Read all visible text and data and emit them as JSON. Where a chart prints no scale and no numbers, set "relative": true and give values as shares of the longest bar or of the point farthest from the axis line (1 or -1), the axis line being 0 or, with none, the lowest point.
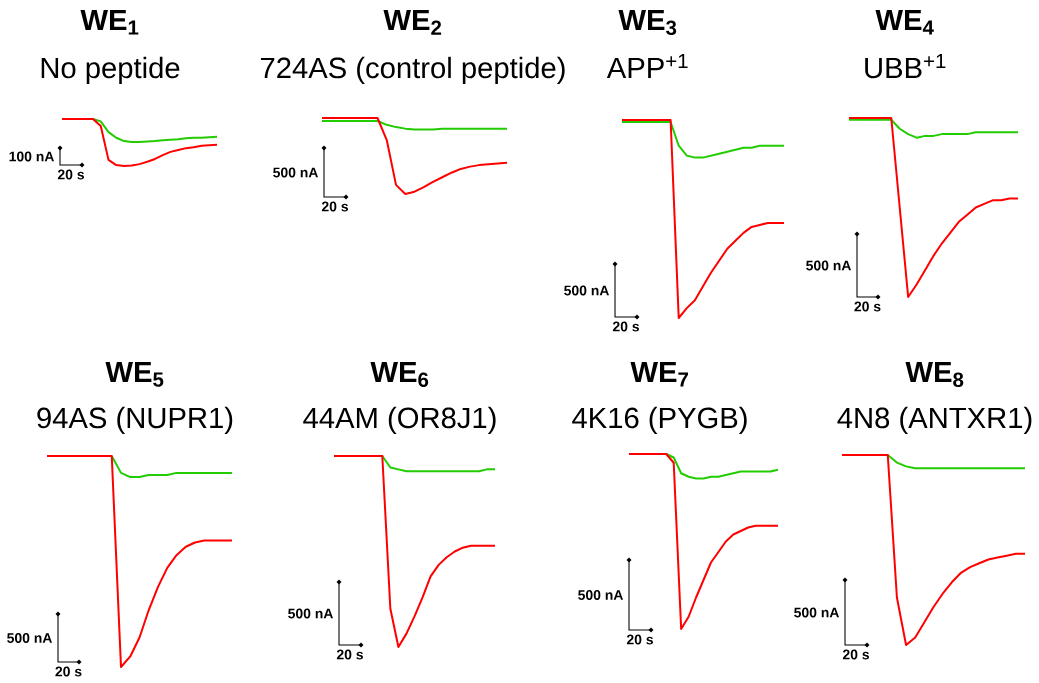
{
  "chart_data": [
    {
      "type": "line",
      "relative": true,
      "title": "WE$_{1}$",
      "subtitle": "No peptide",
      "annotations": [
        "100 nA",
        "20 s"
      ],
      "marker": "none",
      "line_style": "solid",
      "legend": false,
      "categories": [
        null,
        null,
        null,
        null,
        null,
        null,
        null,
        null,
        null,
        null,
        null,
        null,
        null,
        null,
        null,
        null,
        null,
        null,
        null,
        null,
        null
      ],
      "series": [
        {
          "color": "#22cc00",
          "values": [
            null,
            null,
            null,
            null,
            1,
            0.95,
            0.72,
            0.6,
            0.53,
            0.51,
            0.51,
            0.52,
            0.53,
            0.55,
            0.56,
            0.57,
            0.59,
            0.6,
            0.6,
            0.61,
            0.62
          ]
        },
        {
          "color": "#ff0000",
          "values": [
            1,
            1,
            1,
            1,
            1,
            0.85,
            0.13,
            0.02,
            0,
            0.01,
            0.04,
            0.09,
            0.15,
            0.23,
            0.3,
            0.34,
            0.38,
            0.4,
            0.43,
            0.44,
            0.45
          ]
        }
      ]
    },
    {
      "type": "line",
      "relative": true,
      "title": "WE$_{2}$",
      "subtitle": "724AS (control peptide)",
      "annotations": [
        "500 nA",
        "20 s"
      ],
      "marker": "none",
      "line_style": "solid",
      "legend": false,
      "categories": [
        null,
        null,
        null,
        null,
        null,
        null,
        null,
        null,
        null,
        null,
        null,
        null,
        null,
        null,
        null,
        null,
        null,
        null,
        null,
        null,
        null
      ],
      "series": [
        {
          "color": "#22cc00",
          "values": [
            0.96,
            0.96,
            0.96,
            0.96,
            0.96,
            0.96,
            0.96,
            0.91,
            0.88,
            0.86,
            0.85,
            0.85,
            0.85,
            0.86,
            0.86,
            0.86,
            0.86,
            0.86,
            0.86,
            0.86,
            0.86
          ]
        },
        {
          "color": "#ff0000",
          "values": [
            1,
            1,
            1,
            1,
            1,
            1,
            1,
            0.71,
            0.12,
            0,
            0.03,
            0.09,
            0.16,
            0.22,
            0.28,
            0.33,
            0.36,
            0.38,
            0.39,
            0.4,
            0.41
          ]
        }
      ]
    },
    {
      "type": "line",
      "relative": true,
      "title": "WE$_{3}$",
      "subtitle": "APP$^{+1}$",
      "annotations": [
        "500 nA",
        "20 s"
      ],
      "marker": "none",
      "line_style": "solid",
      "legend": false,
      "categories": [
        null,
        null,
        null,
        null,
        null,
        null,
        null,
        null,
        null,
        null,
        null,
        null,
        null,
        null,
        null,
        null,
        null,
        null,
        null,
        null,
        null
      ],
      "series": [
        {
          "color": "#22cc00",
          "values": [
            0.99,
            0.99,
            0.99,
            0.99,
            0.99,
            0.99,
            0.99,
            0.87,
            0.82,
            0.81,
            0.81,
            0.82,
            0.83,
            0.84,
            0.85,
            0.86,
            0.86,
            0.87,
            0.87,
            0.87,
            0.87
          ]
        },
        {
          "color": "#ff0000",
          "values": [
            1,
            1,
            1,
            1,
            1,
            1,
            1,
            0,
            0.05,
            0.09,
            0.16,
            0.23,
            0.29,
            0.35,
            0.39,
            0.43,
            0.46,
            0.47,
            0.48,
            0.48,
            0.48
          ]
        }
      ]
    },
    {
      "type": "line",
      "relative": true,
      "title": "WE$_{4}$",
      "subtitle": "UBB$^{+1}$",
      "annotations": [
        "500 nA",
        "20 s"
      ],
      "marker": "none",
      "line_style": "solid",
      "legend": false,
      "categories": [
        null,
        null,
        null,
        null,
        null,
        null,
        null,
        null,
        null,
        null,
        null,
        null,
        null,
        null,
        null,
        null,
        null,
        null,
        null,
        null,
        null
      ],
      "series": [
        {
          "color": "#22cc00",
          "values": [
            0.99,
            0.99,
            0.99,
            0.99,
            0.99,
            0.99,
            0.94,
            0.91,
            0.89,
            0.9,
            0.9,
            0.91,
            0.91,
            0.91,
            0.91,
            0.92,
            0.92,
            0.92,
            0.92,
            0.92,
            0.92
          ]
        },
        {
          "color": "#ff0000",
          "values": [
            1,
            1,
            1,
            1,
            1,
            1,
            0.5,
            0,
            0.07,
            0.15,
            0.23,
            0.3,
            0.36,
            0.42,
            0.46,
            0.5,
            0.52,
            0.54,
            0.54,
            0.55,
            0.55
          ]
        }
      ]
    },
    {
      "type": "line",
      "relative": true,
      "title": "WE$_{5}$",
      "subtitle": "94AS (NUPR1)",
      "annotations": [
        "500 nA",
        "20 s"
      ],
      "marker": "none",
      "line_style": "solid",
      "legend": false,
      "categories": [
        null,
        null,
        null,
        null,
        null,
        null,
        null,
        null,
        null,
        null,
        null,
        null,
        null,
        null,
        null,
        null,
        null,
        null,
        null,
        null,
        null
      ],
      "series": [
        {
          "color": "#22cc00",
          "values": [
            null,
            null,
            null,
            null,
            null,
            null,
            null,
            1,
            0.92,
            0.9,
            0.9,
            0.91,
            0.91,
            0.91,
            0.92,
            0.92,
            0.92,
            0.92,
            0.92,
            0.92,
            0.92
          ]
        },
        {
          "color": "#ff0000",
          "values": [
            1,
            1,
            1,
            1,
            1,
            1,
            1,
            1,
            0,
            0.05,
            0.14,
            0.27,
            0.38,
            0.47,
            0.53,
            0.57,
            0.59,
            0.6,
            0.6,
            0.6,
            0.6
          ]
        }
      ]
    },
    {
      "type": "line",
      "relative": true,
      "title": "WE$_{6}$",
      "subtitle": "44AM (OR8J1)",
      "annotations": [
        "500 nA",
        "20 s"
      ],
      "marker": "none",
      "line_style": "solid",
      "legend": false,
      "categories": [
        null,
        null,
        null,
        null,
        null,
        null,
        null,
        null,
        null,
        null,
        null,
        null,
        null,
        null,
        null,
        null,
        null,
        null,
        null,
        null,
        null
      ],
      "series": [
        {
          "color": "#22cc00",
          "values": [
            null,
            null,
            null,
            null,
            null,
            null,
            1,
            0.94,
            0.93,
            0.92,
            0.92,
            0.92,
            0.92,
            0.92,
            0.92,
            0.92,
            0.92,
            0.92,
            0.92,
            0.93,
            0.93
          ]
        },
        {
          "color": "#ff0000",
          "values": [
            1,
            1,
            1,
            1,
            1,
            1,
            1,
            0.2,
            0,
            0.07,
            0.16,
            0.26,
            0.37,
            0.43,
            0.47,
            0.5,
            0.52,
            0.53,
            0.53,
            0.53,
            0.53
          ]
        }
      ]
    },
    {
      "type": "line",
      "relative": true,
      "title": "WE$_{7}$",
      "subtitle": "4K16 (PYGB)",
      "annotations": [
        "500 nA",
        "20 s"
      ],
      "marker": "none",
      "line_style": "solid",
      "legend": false,
      "categories": [
        null,
        null,
        null,
        null,
        null,
        null,
        null,
        null,
        null,
        null,
        null,
        null,
        null,
        null,
        null,
        null,
        null,
        null,
        null,
        null,
        null
      ],
      "series": [
        {
          "color": "#22cc00",
          "values": [
            null,
            null,
            null,
            null,
            null,
            1,
            0.98,
            0.89,
            0.87,
            0.86,
            0.86,
            0.87,
            0.87,
            0.88,
            0.89,
            0.9,
            0.9,
            0.9,
            0.9,
            0.9,
            0.91
          ]
        },
        {
          "color": "#ff0000",
          "values": [
            1,
            1,
            1,
            1,
            1,
            1,
            0.95,
            0,
            0.07,
            0.18,
            0.28,
            0.38,
            0.44,
            0.5,
            0.54,
            0.56,
            0.58,
            0.59,
            0.59,
            0.59,
            0.59
          ]
        }
      ]
    },
    {
      "type": "line",
      "relative": true,
      "title": "WE$_{8}$",
      "subtitle": "4N8 (ANTXR1)",
      "annotations": [
        "500 nA",
        "20 s"
      ],
      "marker": "none",
      "line_style": "solid",
      "legend": false,
      "categories": [
        null,
        null,
        null,
        null,
        null,
        null,
        null,
        null,
        null,
        null,
        null,
        null,
        null,
        null,
        null,
        null,
        null,
        null,
        null,
        null,
        null
      ],
      "series": [
        {
          "color": "#22cc00",
          "values": [
            null,
            null,
            null,
            null,
            null,
            1,
            0.96,
            0.94,
            0.93,
            0.93,
            0.93,
            0.93,
            0.93,
            0.93,
            0.93,
            0.93,
            0.93,
            0.93,
            0.93,
            0.93,
            0.93
          ]
        },
        {
          "color": "#ff0000",
          "values": [
            1,
            1,
            1,
            1,
            1,
            1,
            0.25,
            0,
            0.04,
            0.12,
            0.2,
            0.27,
            0.33,
            0.38,
            0.41,
            0.43,
            0.45,
            0.46,
            0.47,
            0.48,
            0.48
          ]
        }
      ]
    }
  ]
}
